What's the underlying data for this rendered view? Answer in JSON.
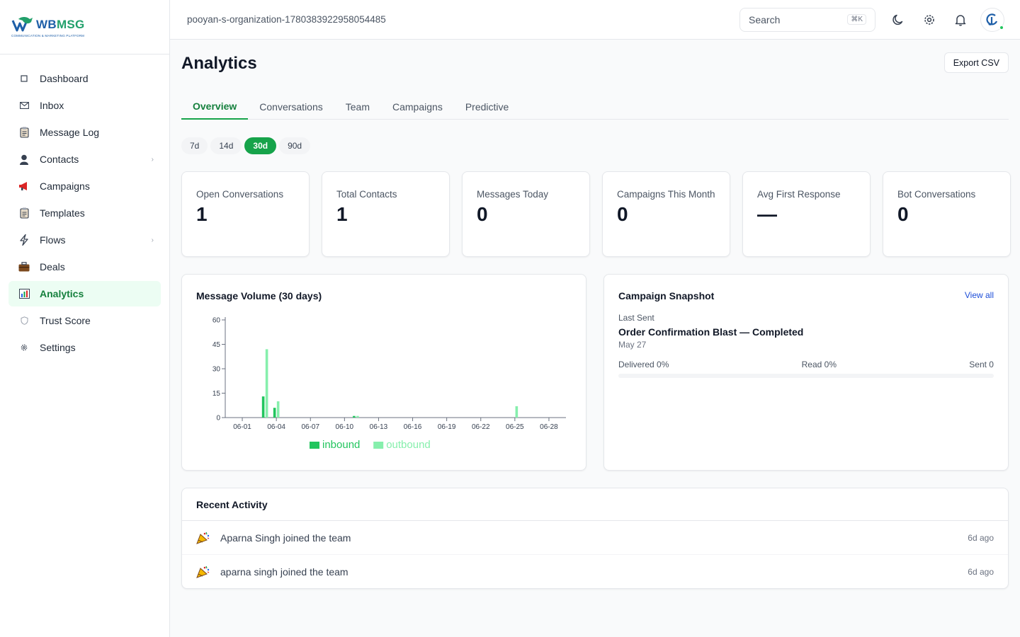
{
  "brand": {
    "name_a": "WB",
    "name_b": "MSG",
    "tagline": "COMMUNICATION & MARKETING PLATFORM"
  },
  "header": {
    "org_name": "pooyan-s-organization-1780383922958054485",
    "search_placeholder": "Search",
    "search_shortcut": "⌘K",
    "avatar_initial": "CJ"
  },
  "sidebar": {
    "items": [
      {
        "label": "Dashboard",
        "icon": "square-icon"
      },
      {
        "label": "Inbox",
        "icon": "mail-icon"
      },
      {
        "label": "Message Log",
        "icon": "clipboard-icon"
      },
      {
        "label": "Contacts",
        "icon": "person-icon",
        "has_children": true
      },
      {
        "label": "Campaigns",
        "icon": "megaphone-icon"
      },
      {
        "label": "Templates",
        "icon": "clipboard-icon"
      },
      {
        "label": "Flows",
        "icon": "lightning-icon",
        "has_children": true
      },
      {
        "label": "Deals",
        "icon": "briefcase-icon"
      },
      {
        "label": "Analytics",
        "icon": "bar-chart-icon",
        "active": true
      },
      {
        "label": "Trust Score",
        "icon": "shield-icon"
      },
      {
        "label": "Settings",
        "icon": "gear-icon"
      }
    ]
  },
  "page": {
    "title": "Analytics",
    "export_label": "Export CSV",
    "tabs": [
      "Overview",
      "Conversations",
      "Team",
      "Campaigns",
      "Predictive"
    ],
    "active_tab": "Overview",
    "ranges": [
      "7d",
      "14d",
      "30d",
      "90d"
    ],
    "active_range": "30d"
  },
  "stats": [
    {
      "label": "Open Conversations",
      "value": "1"
    },
    {
      "label": "Total Contacts",
      "value": "1"
    },
    {
      "label": "Messages Today",
      "value": "0"
    },
    {
      "label": "Campaigns This Month",
      "value": "0"
    },
    {
      "label": "Avg First Response",
      "value": "—"
    },
    {
      "label": "Bot Conversations",
      "value": "0"
    }
  ],
  "volume_card": {
    "title": "Message Volume (30 days)"
  },
  "chart_data": {
    "type": "bar",
    "title": "Message Volume (30 days)",
    "categories": [
      "05-31",
      "06-01",
      "06-02",
      "06-03",
      "06-04",
      "06-05",
      "06-06",
      "06-07",
      "06-08",
      "06-09",
      "06-10",
      "06-11",
      "06-12",
      "06-13",
      "06-14",
      "06-15",
      "06-16",
      "06-17",
      "06-18",
      "06-19",
      "06-20",
      "06-21",
      "06-22",
      "06-23",
      "06-24",
      "06-25",
      "06-26",
      "06-27",
      "06-28",
      "06-29"
    ],
    "x_tick_labels": [
      "06-01",
      "06-04",
      "06-07",
      "06-10",
      "06-13",
      "06-16",
      "06-19",
      "06-22",
      "06-25",
      "06-28"
    ],
    "y_ticks": [
      0,
      15,
      30,
      45,
      60
    ],
    "ylim": [
      0,
      60
    ],
    "series": [
      {
        "name": "inbound",
        "color": "#22c55e",
        "values": [
          0,
          0,
          0,
          13,
          6,
          0,
          0,
          0,
          0,
          0,
          0,
          1,
          0,
          0,
          0,
          0,
          0,
          0,
          0,
          0,
          0,
          0,
          0,
          0,
          0,
          0,
          0,
          0,
          0,
          0
        ]
      },
      {
        "name": "outbound",
        "color": "#86efac",
        "values": [
          0,
          0,
          0,
          42,
          10,
          0,
          0,
          0,
          0,
          0,
          0,
          1,
          0,
          0,
          0,
          0,
          0,
          0,
          0,
          0,
          0,
          0,
          0,
          0,
          0,
          7,
          0,
          0,
          0,
          0
        ]
      }
    ],
    "legend": "bottom-center"
  },
  "snapshot": {
    "title": "Campaign Snapshot",
    "view_all": "View all",
    "last_sent_label": "Last Sent",
    "campaign": "Order Confirmation Blast — Completed",
    "date": "May 27",
    "delivered": "Delivered 0%",
    "read": "Read 0%",
    "sent": "Sent 0",
    "progress_fraction": 0
  },
  "activity": {
    "title": "Recent Activity",
    "items": [
      {
        "text": "Aparna Singh joined the team",
        "time": "6d ago",
        "icon": "party-popper-icon"
      },
      {
        "text": "aparna singh joined the team",
        "time": "6d ago",
        "icon": "party-popper-icon"
      }
    ]
  },
  "colors": {
    "accent": "#16a34a",
    "active_bg": "#ecfdf3",
    "link": "#1d4ed8"
  }
}
